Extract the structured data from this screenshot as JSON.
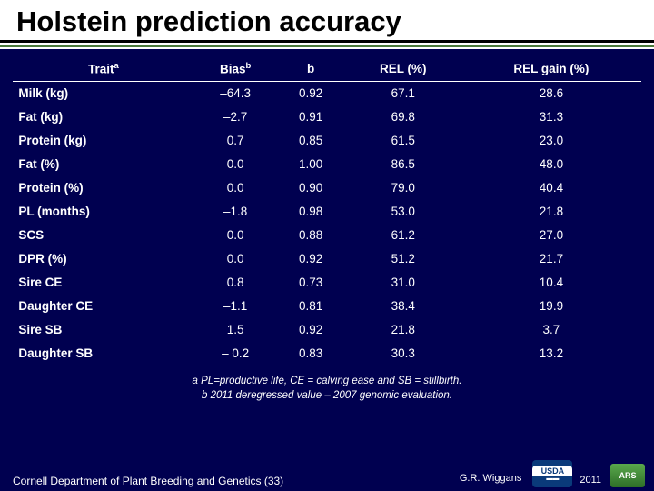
{
  "title": "Holstein prediction accuracy",
  "table": {
    "columns": [
      "Trait",
      "Bias",
      "b",
      "REL (%)",
      "REL gain (%)"
    ],
    "sup_a": "a",
    "sup_b": "b",
    "rows": [
      [
        "Milk (kg)",
        "–64.3",
        "0.92",
        "67.1",
        "28.6"
      ],
      [
        "Fat (kg)",
        "–2.7",
        "0.91",
        "69.8",
        "31.3"
      ],
      [
        "Protein (kg)",
        "0.7",
        "0.85",
        "61.5",
        "23.0"
      ],
      [
        "Fat (%)",
        "0.0",
        "1.00",
        "86.5",
        "48.0"
      ],
      [
        "Protein (%)",
        "0.0",
        "0.90",
        "79.0",
        "40.4"
      ],
      [
        "PL (months)",
        "–1.8",
        "0.98",
        "53.0",
        "21.8"
      ],
      [
        "SCS",
        "0.0",
        "0.88",
        "61.2",
        "27.0"
      ],
      [
        "DPR (%)",
        "0.0",
        "0.92",
        "51.2",
        "21.7"
      ],
      [
        "Sire CE",
        "0.8",
        "0.73",
        "31.0",
        "10.4"
      ],
      [
        "Daughter CE",
        "–1.1",
        "0.81",
        "38.4",
        "19.9"
      ],
      [
        "Sire SB",
        "1.5",
        "0.92",
        "21.8",
        "3.7"
      ],
      [
        "Daughter SB",
        "– 0.2",
        "0.83",
        "30.3",
        "13.2"
      ]
    ]
  },
  "footnotes": {
    "a": "a PL=productive life, CE = calving ease and SB = stillbirth.",
    "b": "b 2011 deregressed value – 2007 genomic evaluation."
  },
  "footer": {
    "left": "Cornell Department of Plant Breeding and Genetics (33)",
    "author": "G.R. Wiggans",
    "year": "2011",
    "usda": "USDA",
    "ars": "ARS"
  },
  "colors": {
    "background": "#000050",
    "title_bg": "#ffffff",
    "title_fg": "#000000",
    "underline": "#4a7a3a",
    "text": "#ffffff"
  }
}
